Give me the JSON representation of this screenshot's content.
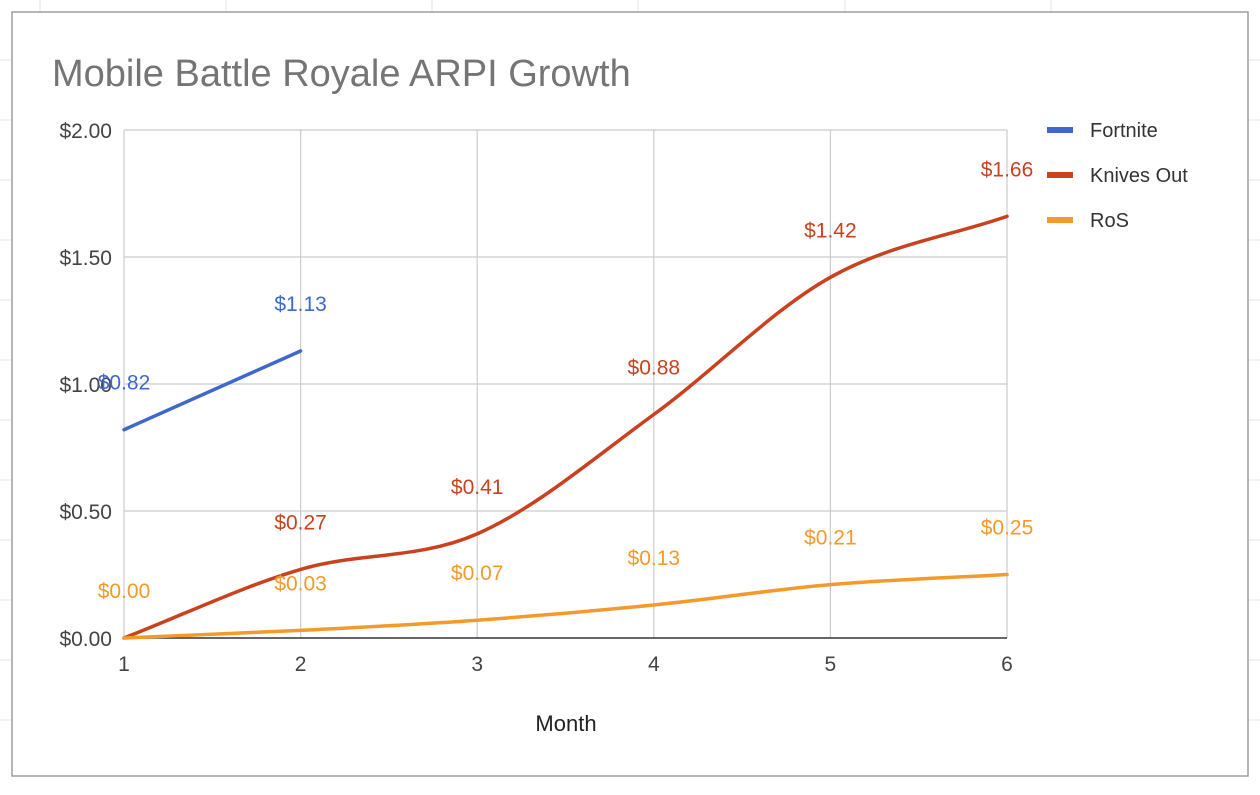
{
  "chart_data": {
    "type": "line",
    "title": "Mobile Battle Royale ARPI Growth",
    "xlabel": "Month",
    "ylabel": "",
    "x": [
      1,
      2,
      3,
      4,
      5,
      6
    ],
    "xlim": [
      1,
      6
    ],
    "ylim": [
      0,
      2
    ],
    "y_ticks": [
      0,
      0.5,
      1.0,
      1.5,
      2.0
    ],
    "y_tick_labels": [
      "$0.00",
      "$0.50",
      "$1.00",
      "$1.50",
      "$2.00"
    ],
    "x_tick_labels": [
      "1",
      "2",
      "3",
      "4",
      "5",
      "6"
    ],
    "grid": true,
    "legend_position": "right",
    "series": [
      {
        "name": "Fortnite",
        "color": "#3e68cc",
        "smooth": false,
        "x": [
          1,
          2
        ],
        "values": [
          0.82,
          1.13
        ],
        "labels": [
          "$0.82",
          "$1.13"
        ]
      },
      {
        "name": "Knives Out",
        "color": "#c9421f",
        "smooth": true,
        "x": [
          1,
          2,
          3,
          4,
          5,
          6
        ],
        "values": [
          0.0,
          0.27,
          0.41,
          0.88,
          1.42,
          1.66
        ],
        "labels": [
          "",
          "$0.27",
          "$0.41",
          "$0.88",
          "$1.42",
          "$1.66"
        ]
      },
      {
        "name": "RoS",
        "color": "#f39a2b",
        "smooth": true,
        "x": [
          1,
          2,
          3,
          4,
          5,
          6
        ],
        "values": [
          0.0,
          0.03,
          0.07,
          0.13,
          0.21,
          0.25
        ],
        "labels": [
          "$0.00",
          "$0.03",
          "$0.07",
          "$0.13",
          "$0.21",
          "$0.25"
        ]
      }
    ]
  }
}
